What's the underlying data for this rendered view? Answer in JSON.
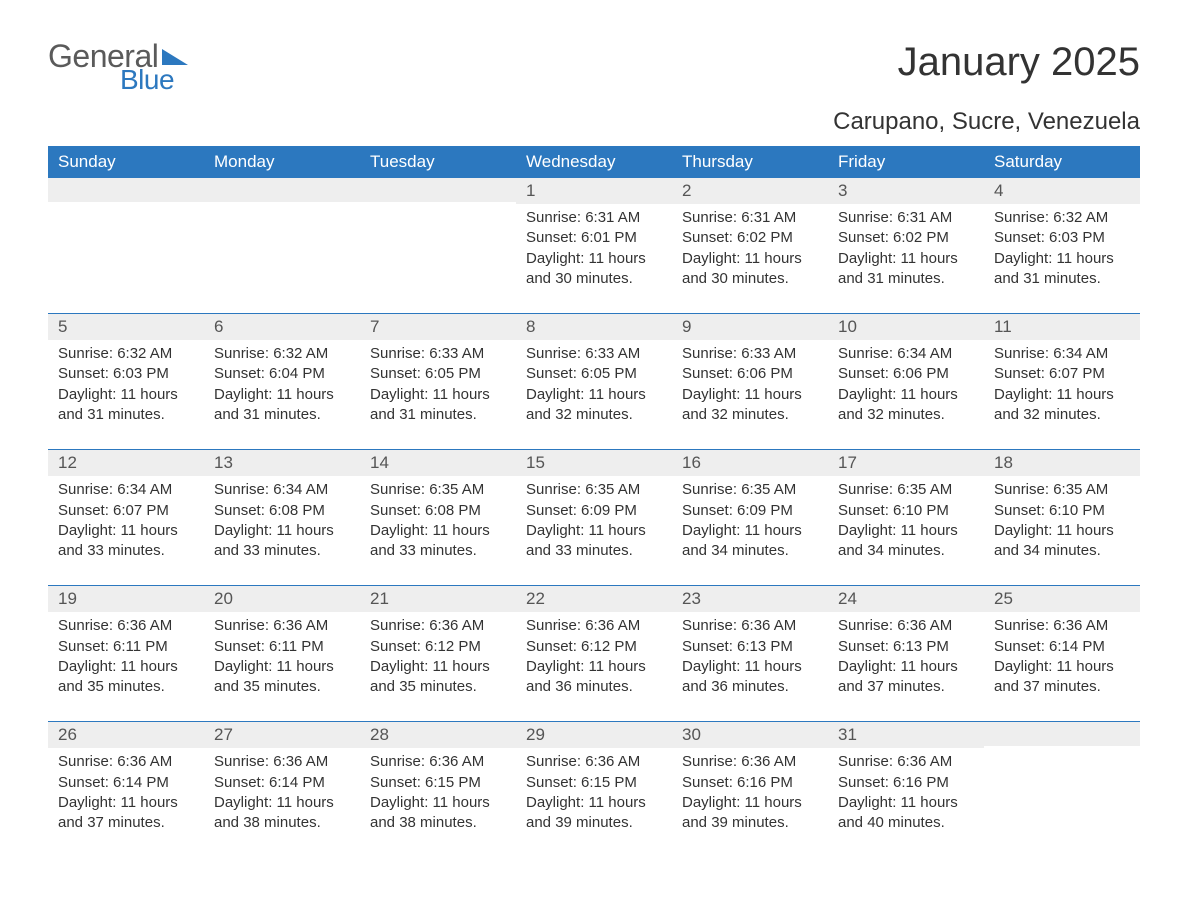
{
  "logo": {
    "word1": "General",
    "word2": "Blue"
  },
  "title": "January 2025",
  "location": "Carupano, Sucre, Venezuela",
  "colors": {
    "header_bg": "#2c78bf",
    "header_text": "#ffffff",
    "daynum_bg": "#eeeeee",
    "daynum_text": "#555555",
    "body_text": "#333333",
    "rule": "#2c78bf",
    "page_bg": "#ffffff",
    "logo_gray": "#5a5a5a",
    "logo_blue": "#2c78bf"
  },
  "typography": {
    "month_title_fontsize": 40,
    "location_fontsize": 24,
    "dayheader_fontsize": 17,
    "daynum_fontsize": 17,
    "body_fontsize": 15
  },
  "day_headers": [
    "Sunday",
    "Monday",
    "Tuesday",
    "Wednesday",
    "Thursday",
    "Friday",
    "Saturday"
  ],
  "weeks": [
    [
      null,
      null,
      null,
      {
        "n": "1",
        "sunrise": "6:31 AM",
        "sunset": "6:01 PM",
        "daylight": "11 hours and 30 minutes."
      },
      {
        "n": "2",
        "sunrise": "6:31 AM",
        "sunset": "6:02 PM",
        "daylight": "11 hours and 30 minutes."
      },
      {
        "n": "3",
        "sunrise": "6:31 AM",
        "sunset": "6:02 PM",
        "daylight": "11 hours and 31 minutes."
      },
      {
        "n": "4",
        "sunrise": "6:32 AM",
        "sunset": "6:03 PM",
        "daylight": "11 hours and 31 minutes."
      }
    ],
    [
      {
        "n": "5",
        "sunrise": "6:32 AM",
        "sunset": "6:03 PM",
        "daylight": "11 hours and 31 minutes."
      },
      {
        "n": "6",
        "sunrise": "6:32 AM",
        "sunset": "6:04 PM",
        "daylight": "11 hours and 31 minutes."
      },
      {
        "n": "7",
        "sunrise": "6:33 AM",
        "sunset": "6:05 PM",
        "daylight": "11 hours and 31 minutes."
      },
      {
        "n": "8",
        "sunrise": "6:33 AM",
        "sunset": "6:05 PM",
        "daylight": "11 hours and 32 minutes."
      },
      {
        "n": "9",
        "sunrise": "6:33 AM",
        "sunset": "6:06 PM",
        "daylight": "11 hours and 32 minutes."
      },
      {
        "n": "10",
        "sunrise": "6:34 AM",
        "sunset": "6:06 PM",
        "daylight": "11 hours and 32 minutes."
      },
      {
        "n": "11",
        "sunrise": "6:34 AM",
        "sunset": "6:07 PM",
        "daylight": "11 hours and 32 minutes."
      }
    ],
    [
      {
        "n": "12",
        "sunrise": "6:34 AM",
        "sunset": "6:07 PM",
        "daylight": "11 hours and 33 minutes."
      },
      {
        "n": "13",
        "sunrise": "6:34 AM",
        "sunset": "6:08 PM",
        "daylight": "11 hours and 33 minutes."
      },
      {
        "n": "14",
        "sunrise": "6:35 AM",
        "sunset": "6:08 PM",
        "daylight": "11 hours and 33 minutes."
      },
      {
        "n": "15",
        "sunrise": "6:35 AM",
        "sunset": "6:09 PM",
        "daylight": "11 hours and 33 minutes."
      },
      {
        "n": "16",
        "sunrise": "6:35 AM",
        "sunset": "6:09 PM",
        "daylight": "11 hours and 34 minutes."
      },
      {
        "n": "17",
        "sunrise": "6:35 AM",
        "sunset": "6:10 PM",
        "daylight": "11 hours and 34 minutes."
      },
      {
        "n": "18",
        "sunrise": "6:35 AM",
        "sunset": "6:10 PM",
        "daylight": "11 hours and 34 minutes."
      }
    ],
    [
      {
        "n": "19",
        "sunrise": "6:36 AM",
        "sunset": "6:11 PM",
        "daylight": "11 hours and 35 minutes."
      },
      {
        "n": "20",
        "sunrise": "6:36 AM",
        "sunset": "6:11 PM",
        "daylight": "11 hours and 35 minutes."
      },
      {
        "n": "21",
        "sunrise": "6:36 AM",
        "sunset": "6:12 PM",
        "daylight": "11 hours and 35 minutes."
      },
      {
        "n": "22",
        "sunrise": "6:36 AM",
        "sunset": "6:12 PM",
        "daylight": "11 hours and 36 minutes."
      },
      {
        "n": "23",
        "sunrise": "6:36 AM",
        "sunset": "6:13 PM",
        "daylight": "11 hours and 36 minutes."
      },
      {
        "n": "24",
        "sunrise": "6:36 AM",
        "sunset": "6:13 PM",
        "daylight": "11 hours and 37 minutes."
      },
      {
        "n": "25",
        "sunrise": "6:36 AM",
        "sunset": "6:14 PM",
        "daylight": "11 hours and 37 minutes."
      }
    ],
    [
      {
        "n": "26",
        "sunrise": "6:36 AM",
        "sunset": "6:14 PM",
        "daylight": "11 hours and 37 minutes."
      },
      {
        "n": "27",
        "sunrise": "6:36 AM",
        "sunset": "6:14 PM",
        "daylight": "11 hours and 38 minutes."
      },
      {
        "n": "28",
        "sunrise": "6:36 AM",
        "sunset": "6:15 PM",
        "daylight": "11 hours and 38 minutes."
      },
      {
        "n": "29",
        "sunrise": "6:36 AM",
        "sunset": "6:15 PM",
        "daylight": "11 hours and 39 minutes."
      },
      {
        "n": "30",
        "sunrise": "6:36 AM",
        "sunset": "6:16 PM",
        "daylight": "11 hours and 39 minutes."
      },
      {
        "n": "31",
        "sunrise": "6:36 AM",
        "sunset": "6:16 PM",
        "daylight": "11 hours and 40 minutes."
      },
      null
    ]
  ],
  "labels": {
    "sunrise": "Sunrise:",
    "sunset": "Sunset:",
    "daylight": "Daylight:"
  }
}
